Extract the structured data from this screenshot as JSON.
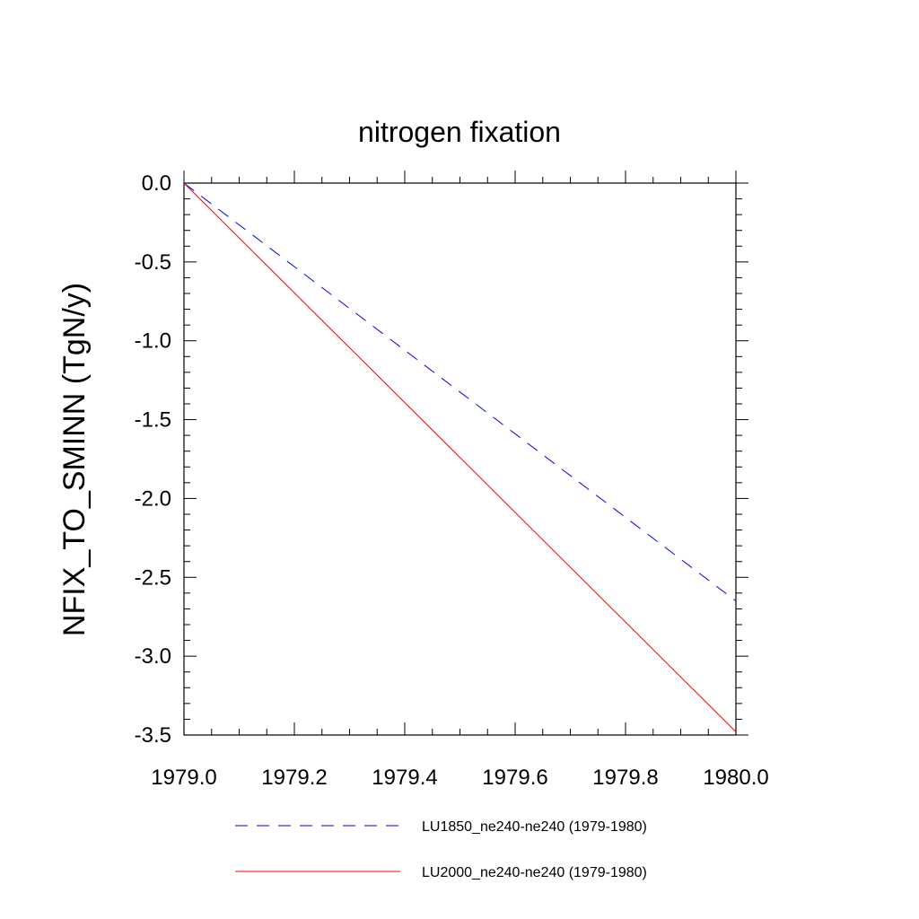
{
  "chart_data": {
    "type": "line",
    "title": "nitrogen fixation",
    "xlabel": "",
    "ylabel": "NFIX_TO_SMINN  (TgN/y)",
    "xlim": [
      1979.0,
      1980.0
    ],
    "ylim": [
      -3.5,
      0.0
    ],
    "x_ticks": [
      "1979.0",
      "1979.2",
      "1979.4",
      "1979.6",
      "1979.8",
      "1980.0"
    ],
    "y_ticks": [
      "0.0",
      "-0.5",
      "-1.0",
      "-1.5",
      "-2.0",
      "-2.5",
      "-3.0",
      "-3.5"
    ],
    "grid": false,
    "legend_position": "bottom",
    "series": [
      {
        "name": "LU1850_ne240-ne240 (1979-1980)",
        "color": "#0000ff",
        "style": "dashed",
        "x": [
          1979.0,
          1980.0
        ],
        "y": [
          0.0,
          -2.65
        ]
      },
      {
        "name": "LU2000_ne240-ne240 (1979-1980)",
        "color": "#ff0000",
        "style": "solid",
        "x": [
          1979.0,
          1980.0
        ],
        "y": [
          0.0,
          -3.48
        ]
      }
    ]
  }
}
